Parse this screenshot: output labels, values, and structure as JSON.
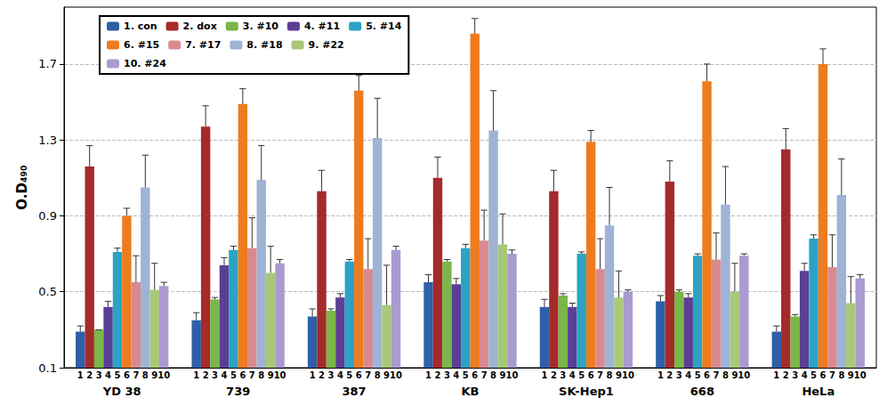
{
  "chart_data": {
    "type": "bar",
    "ylabel": "O.D₄₉₀",
    "categories": [
      "YD 38",
      "739",
      "387",
      "KB",
      "SK-Hep1",
      "668",
      "HeLa"
    ],
    "subcategories": [
      "1",
      "2",
      "3",
      "4",
      "5",
      "6",
      "7",
      "8",
      "9",
      "10"
    ],
    "ylim": [
      0.1,
      2.0
    ],
    "yticks": [
      0.1,
      0.5,
      0.9,
      1.3,
      1.7
    ],
    "grid": true,
    "legend": "upper left",
    "series": [
      {
        "name": "1. con",
        "color": "#2e5fa8",
        "values": [
          0.29,
          0.35,
          0.37,
          0.55,
          0.42,
          0.45,
          0.29
        ],
        "errors": [
          0.03,
          0.04,
          0.04,
          0.04,
          0.04,
          0.03,
          0.03
        ]
      },
      {
        "name": "2. dox",
        "color": "#a52a2a",
        "values": [
          1.16,
          1.37,
          1.03,
          1.1,
          1.03,
          1.08,
          1.25
        ],
        "errors": [
          0.11,
          0.11,
          0.11,
          0.11,
          0.11,
          0.11,
          0.11
        ]
      },
      {
        "name": "3. #10",
        "color": "#7ab648",
        "values": [
          0.3,
          0.46,
          0.4,
          0.66,
          0.48,
          0.5,
          0.37
        ],
        "errors": [
          0.0,
          0.01,
          0.01,
          0.01,
          0.01,
          0.01,
          0.01
        ]
      },
      {
        "name": "4. #11",
        "color": "#5b3f95",
        "values": [
          0.42,
          0.64,
          0.47,
          0.54,
          0.42,
          0.47,
          0.61
        ],
        "errors": [
          0.03,
          0.04,
          0.02,
          0.03,
          0.02,
          0.02,
          0.04
        ]
      },
      {
        "name": "5. #14",
        "color": "#2ba3c4",
        "values": [
          0.71,
          0.72,
          0.66,
          0.73,
          0.7,
          0.69,
          0.78
        ],
        "errors": [
          0.02,
          0.02,
          0.01,
          0.02,
          0.01,
          0.01,
          0.02
        ]
      },
      {
        "name": "6. #15",
        "color": "#ee7c1e",
        "values": [
          0.9,
          1.49,
          1.56,
          1.86,
          1.29,
          1.61,
          1.7
        ],
        "errors": [
          0.04,
          0.08,
          0.08,
          0.08,
          0.06,
          0.09,
          0.08
        ]
      },
      {
        "name": "7. #17",
        "color": "#d98a8e",
        "values": [
          0.55,
          0.73,
          0.62,
          0.77,
          0.62,
          0.67,
          0.63
        ],
        "errors": [
          0.14,
          0.16,
          0.16,
          0.16,
          0.16,
          0.14,
          0.17
        ]
      },
      {
        "name": "8. #18",
        "color": "#9fb3d6",
        "values": [
          1.05,
          1.09,
          1.31,
          1.35,
          0.85,
          0.96,
          1.01
        ],
        "errors": [
          0.17,
          0.18,
          0.21,
          0.21,
          0.2,
          0.2,
          0.19
        ]
      },
      {
        "name": "9. #22",
        "color": "#a8c878",
        "values": [
          0.51,
          0.6,
          0.43,
          0.75,
          0.47,
          0.5,
          0.44
        ],
        "errors": [
          0.14,
          0.14,
          0.21,
          0.16,
          0.14,
          0.15,
          0.14
        ]
      },
      {
        "name": "10. #24",
        "color": "#a99bd0",
        "values": [
          0.53,
          0.65,
          0.72,
          0.7,
          0.5,
          0.69,
          0.57
        ],
        "errors": [
          0.02,
          0.02,
          0.02,
          0.02,
          0.01,
          0.01,
          0.02
        ]
      }
    ]
  }
}
